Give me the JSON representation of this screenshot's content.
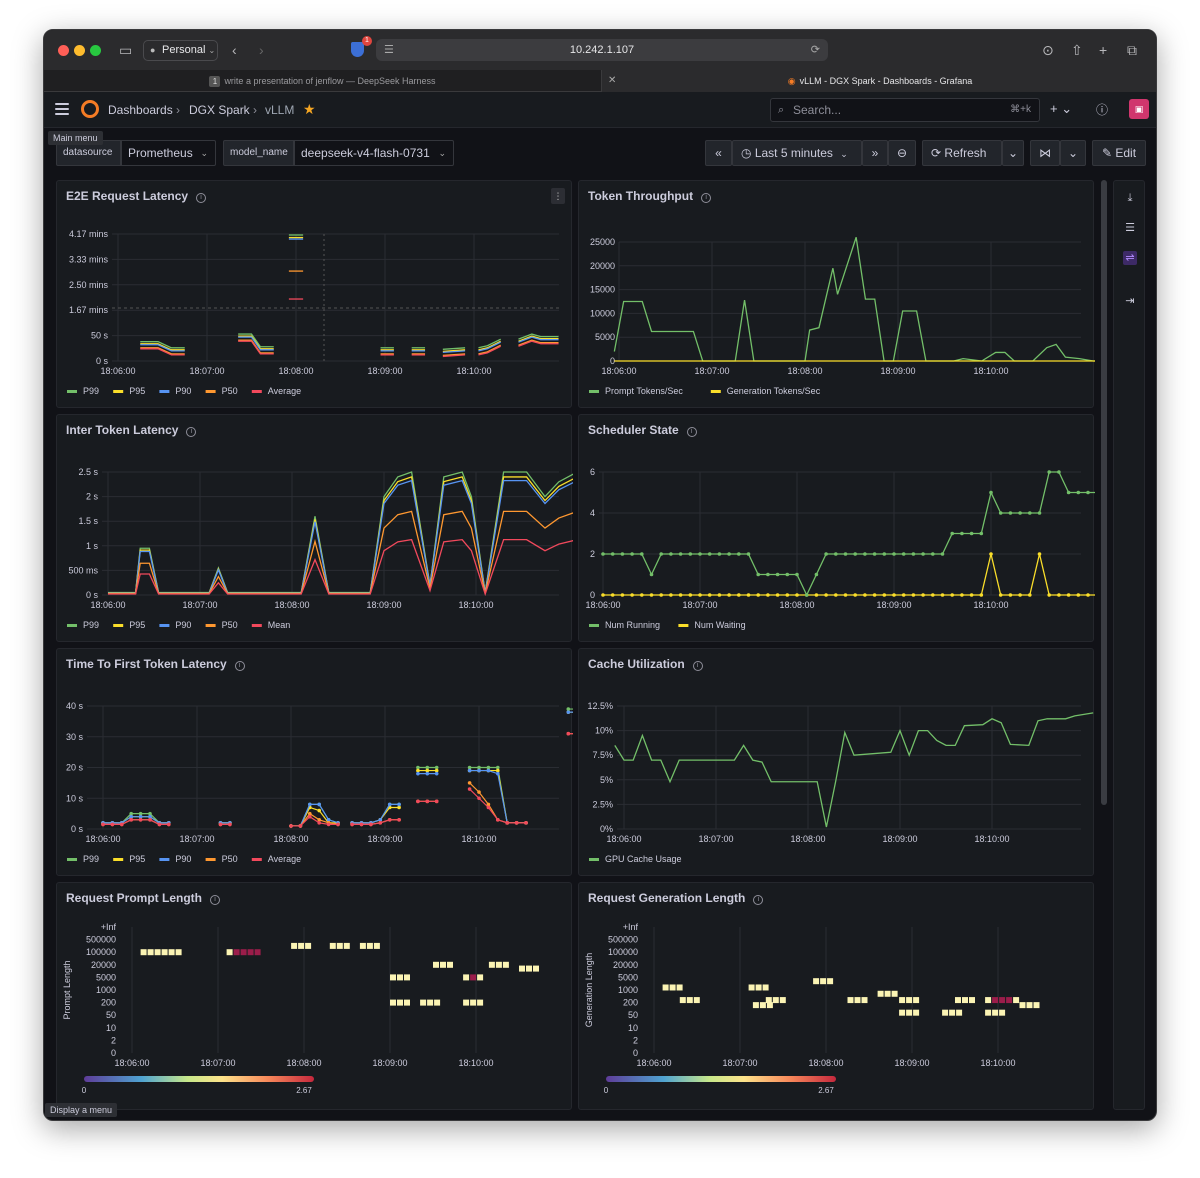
{
  "browser": {
    "profile": "Personal",
    "url": "10.242.1.107",
    "shield_badge": "1",
    "tabs": [
      {
        "num": "1",
        "title": "write a presentation of jenflow — DeepSeek Harness"
      },
      {
        "title": "vLLM - DGX Spark - Dashboards - Grafana"
      }
    ]
  },
  "header": {
    "breadcrumb": [
      "Dashboards",
      "DGX Spark",
      "vLLM"
    ],
    "search_placeholder": "Search...",
    "search_shortcut": "⌘+k",
    "main_menu_tooltip": "Main menu"
  },
  "variables": {
    "datasource_label": "datasource",
    "datasource_value": "Prometheus",
    "model_label": "model_name",
    "model_value": "deepseek-v4-flash-0731"
  },
  "toolbar": {
    "time_range": "Last 5 minutes",
    "refresh": "Refresh",
    "edit": "Edit"
  },
  "footer_tooltip": "Display a menu",
  "x_ticks": [
    "18:06:00",
    "18:07:00",
    "18:08:00",
    "18:09:00",
    "18:10:00"
  ],
  "panels": {
    "e2e": {
      "title": "E2E Request Latency",
      "yticks": [
        "4.17 mins",
        "3.33 mins",
        "2.50 mins",
        "1.67 mins",
        "50 s",
        "0 s"
      ],
      "legend": [
        "P99",
        "P95",
        "P90",
        "P50",
        "Average"
      ]
    },
    "throughput": {
      "title": "Token Throughput",
      "yticks": [
        "25000",
        "20000",
        "15000",
        "10000",
        "5000",
        "0"
      ],
      "legend": [
        "Prompt Tokens/Sec",
        "Generation Tokens/Sec"
      ]
    },
    "itl": {
      "title": "Inter Token Latency",
      "yticks": [
        "2.5 s",
        "2 s",
        "1.5 s",
        "1 s",
        "500 ms",
        "0 s"
      ],
      "legend": [
        "P99",
        "P95",
        "P90",
        "P50",
        "Mean"
      ]
    },
    "sched": {
      "title": "Scheduler State",
      "yticks": [
        "6",
        "4",
        "2",
        "0"
      ],
      "legend": [
        "Num Running",
        "Num Waiting"
      ]
    },
    "ttft": {
      "title": "Time To First Token Latency",
      "yticks": [
        "40 s",
        "30 s",
        "20 s",
        "10 s",
        "0 s"
      ],
      "legend": [
        "P99",
        "P95",
        "P90",
        "P50",
        "Average"
      ]
    },
    "cache": {
      "title": "Cache Utilization",
      "yticks": [
        "12.5%",
        "10%",
        "7.5%",
        "5%",
        "2.5%",
        "0%"
      ],
      "legend": [
        "GPU Cache Usage"
      ]
    },
    "prompt_len": {
      "title": "Request Prompt Length",
      "ylabel": "Prompt Length",
      "yticks": [
        "+Inf",
        "500000",
        "100000",
        "20000",
        "5000",
        "1000",
        "200",
        "50",
        "10",
        "2",
        "0"
      ],
      "scale_min": "0",
      "scale_max": "2.67"
    },
    "gen_len": {
      "title": "Request Generation Length",
      "ylabel": "Generation Length",
      "yticks": [
        "+Inf",
        "500000",
        "100000",
        "20000",
        "5000",
        "1000",
        "200",
        "50",
        "10",
        "2",
        "0"
      ],
      "scale_min": "0",
      "scale_max": "2.67"
    }
  },
  "colors": {
    "p99": "#73bf69",
    "p95": "#fade2a",
    "p90": "#5794f2",
    "p50": "#ff9830",
    "avg": "#f2495c",
    "bg": "#181b1f",
    "grid": "#2a2d33",
    "text": "#ccccdc",
    "accent": "#f57c25"
  },
  "chart_data": [
    {
      "type": "line",
      "title": "E2E Request Latency",
      "x": [
        "18:06:00",
        "18:07:00",
        "18:08:00",
        "18:09:00",
        "18:10:00"
      ],
      "series": [
        {
          "name": "P99",
          "values": [
            30,
            25,
            248,
            18,
            45
          ]
        },
        {
          "name": "P95",
          "values": [
            28,
            20,
            240,
            16,
            40
          ]
        },
        {
          "name": "P90",
          "values": [
            27,
            18,
            235,
            15,
            35
          ]
        },
        {
          "name": "P50",
          "values": [
            25,
            10,
            180,
            12,
            28
          ]
        },
        {
          "name": "Average",
          "values": [
            24,
            12,
            122,
            12,
            25
          ]
        }
      ]
    },
    {
      "type": "line",
      "title": "Token Throughput",
      "x": [
        "18:06:00",
        "18:07:00",
        "18:08:00",
        "18:09:00",
        "18:10:00"
      ],
      "series": [
        {
          "name": "Prompt Tokens/Sec",
          "values": [
            12500,
            6000,
            26000,
            1500,
            4000
          ]
        },
        {
          "name": "Generation Tokens/Sec",
          "values": [
            0,
            0,
            0,
            0,
            0
          ]
        }
      ]
    },
    {
      "type": "line",
      "title": "Inter Token Latency",
      "x": [
        "18:06:00",
        "18:07:00",
        "18:08:00",
        "18:09:00",
        "18:10:00"
      ],
      "series": [
        {
          "name": "P99",
          "values": [
            0.05,
            0.3,
            0.05,
            2.5,
            2.5
          ]
        },
        {
          "name": "P95",
          "values": [
            0.05,
            0.05,
            0.05,
            2.3,
            2.4
          ]
        },
        {
          "name": "P90",
          "values": [
            0.05,
            0.05,
            0.05,
            2.1,
            2.4
          ]
        },
        {
          "name": "P50",
          "values": [
            0.03,
            0.03,
            0.03,
            1.5,
            1.7
          ]
        },
        {
          "name": "Mean",
          "values": [
            0.03,
            0.03,
            0.03,
            1.0,
            1.1
          ]
        }
      ]
    },
    {
      "type": "line",
      "title": "Scheduler State",
      "x": [
        "18:06:00",
        "18:07:00",
        "18:08:00",
        "18:09:00",
        "18:10:00"
      ],
      "series": [
        {
          "name": "Num Running",
          "values": [
            2,
            2,
            0,
            3,
            5
          ]
        },
        {
          "name": "Num Waiting",
          "values": [
            0,
            0,
            0,
            0,
            0
          ]
        }
      ]
    },
    {
      "type": "line",
      "title": "Time To First Token Latency",
      "x": [
        "18:06:00",
        "18:07:00",
        "18:08:00",
        "18:09:00",
        "18:10:00"
      ],
      "series": [
        {
          "name": "P99",
          "values": [
            5,
            2,
            8,
            19,
            39
          ]
        },
        {
          "name": "P95",
          "values": [
            4,
            2,
            7,
            18,
            38
          ]
        },
        {
          "name": "P90",
          "values": [
            4,
            2,
            7,
            17,
            38
          ]
        },
        {
          "name": "P50",
          "values": [
            3,
            2,
            4,
            9,
            31
          ]
        },
        {
          "name": "Average",
          "values": [
            3,
            2,
            3,
            9,
            31
          ]
        }
      ]
    },
    {
      "type": "line",
      "title": "Cache Utilization",
      "x": [
        "18:06:00",
        "18:07:00",
        "18:08:00",
        "18:09:00",
        "18:10:00"
      ],
      "series": [
        {
          "name": "GPU Cache Usage",
          "values": [
            8.5,
            7.0,
            0.2,
            9.5,
            11.8
          ]
        }
      ]
    }
  ]
}
